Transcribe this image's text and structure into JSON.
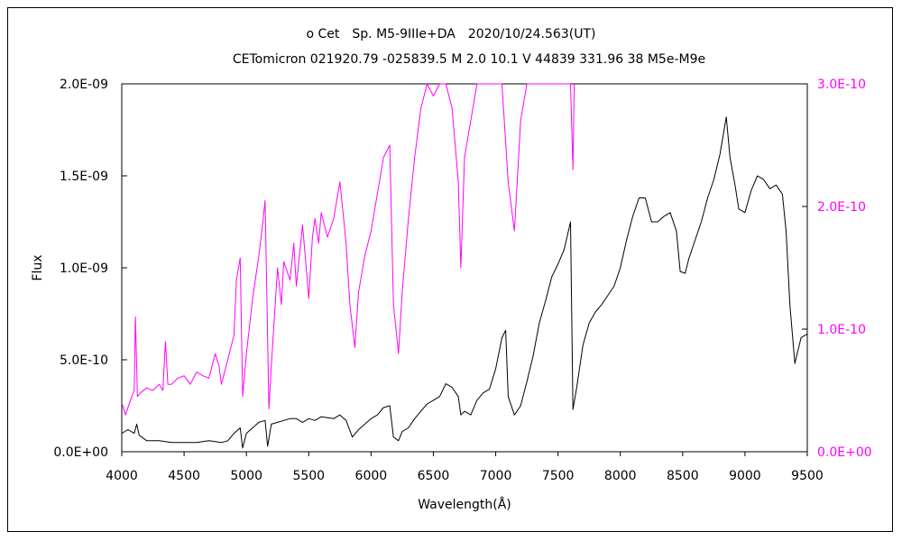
{
  "chart_data": {
    "type": "line",
    "title": "ο Cet　Sp. M5-9IIIe+DA　2020/10/24.563(UT)",
    "subtitle": "CETomicron 021920.79 -025839.5 M 2.0 10.1 V 44839 331.96 38 M5e-M9e",
    "xlabel": "Wavelength(Å)",
    "ylabel": "Flux",
    "xlim": [
      4000,
      9500
    ],
    "ylim": [
      0,
      2e-09
    ],
    "y2lim": [
      0,
      3e-10
    ],
    "grid": false,
    "x_ticks": [
      "4000",
      "4500",
      "5000",
      "5500",
      "6000",
      "6500",
      "7000",
      "7500",
      "8000",
      "8500",
      "9000",
      "9500"
    ],
    "y_ticks": [
      "0.0E+00",
      "5.0E-10",
      "1.0E-09",
      "1.5E-09",
      "2.0E-09"
    ],
    "y2_ticks": [
      "0.0E+00",
      "1.0E-10",
      "2.0E-10",
      "3.0E-10"
    ],
    "colors": {
      "primary": "#000000",
      "secondary": "#ff00ff"
    },
    "series": [
      {
        "axis": "left",
        "color": "#000000",
        "points": [
          [
            4000,
            1e-10
          ],
          [
            4050,
            1.2e-10
          ],
          [
            4100,
            1e-10
          ],
          [
            4120,
            1.5e-10
          ],
          [
            4140,
            9e-11
          ],
          [
            4200,
            6e-11
          ],
          [
            4300,
            6e-11
          ],
          [
            4400,
            5e-11
          ],
          [
            4500,
            5e-11
          ],
          [
            4600,
            5e-11
          ],
          [
            4700,
            6e-11
          ],
          [
            4800,
            5e-11
          ],
          [
            4850,
            6e-11
          ],
          [
            4900,
            1e-10
          ],
          [
            4950,
            1.3e-10
          ],
          [
            4970,
            2e-11
          ],
          [
            5000,
            1e-10
          ],
          [
            5050,
            1.3e-10
          ],
          [
            5100,
            1.6e-10
          ],
          [
            5150,
            1.7e-10
          ],
          [
            5170,
            3e-11
          ],
          [
            5200,
            1.5e-10
          ],
          [
            5250,
            1.6e-10
          ],
          [
            5300,
            1.7e-10
          ],
          [
            5350,
            1.8e-10
          ],
          [
            5400,
            1.8e-10
          ],
          [
            5450,
            1.6e-10
          ],
          [
            5500,
            1.8e-10
          ],
          [
            5550,
            1.7e-10
          ],
          [
            5600,
            1.9e-10
          ],
          [
            5700,
            1.8e-10
          ],
          [
            5750,
            2e-10
          ],
          [
            5800,
            1.7e-10
          ],
          [
            5850,
            8e-11
          ],
          [
            5900,
            1.2e-10
          ],
          [
            5950,
            1.5e-10
          ],
          [
            6000,
            1.8e-10
          ],
          [
            6050,
            2e-10
          ],
          [
            6100,
            2.4e-10
          ],
          [
            6150,
            2.5e-10
          ],
          [
            6180,
            8e-11
          ],
          [
            6220,
            6e-11
          ],
          [
            6250,
            1.1e-10
          ],
          [
            6300,
            1.3e-10
          ],
          [
            6350,
            1.8e-10
          ],
          [
            6400,
            2.2e-10
          ],
          [
            6450,
            2.6e-10
          ],
          [
            6500,
            2.8e-10
          ],
          [
            6550,
            3e-10
          ],
          [
            6600,
            3.7e-10
          ],
          [
            6650,
            3.5e-10
          ],
          [
            6700,
            3e-10
          ],
          [
            6720,
            2e-10
          ],
          [
            6750,
            2.2e-10
          ],
          [
            6800,
            2e-10
          ],
          [
            6850,
            2.8e-10
          ],
          [
            6900,
            3.2e-10
          ],
          [
            6950,
            3.4e-10
          ],
          [
            7000,
            4.5e-10
          ],
          [
            7050,
            6.2e-10
          ],
          [
            7080,
            6.6e-10
          ],
          [
            7100,
            3e-10
          ],
          [
            7150,
            2e-10
          ],
          [
            7200,
            2.5e-10
          ],
          [
            7250,
            3.8e-10
          ],
          [
            7300,
            5.2e-10
          ],
          [
            7350,
            7e-10
          ],
          [
            7400,
            8.2e-10
          ],
          [
            7450,
            9.5e-10
          ],
          [
            7500,
            1.02e-09
          ],
          [
            7550,
            1.1e-09
          ],
          [
            7600,
            1.25e-09
          ],
          [
            7620,
            2.3e-10
          ],
          [
            7650,
            3.5e-10
          ],
          [
            7700,
            5.8e-10
          ],
          [
            7750,
            7e-10
          ],
          [
            7800,
            7.6e-10
          ],
          [
            7850,
            8e-10
          ],
          [
            7900,
            8.5e-10
          ],
          [
            7950,
            9e-10
          ],
          [
            8000,
            1e-09
          ],
          [
            8050,
            1.15e-09
          ],
          [
            8100,
            1.28e-09
          ],
          [
            8150,
            1.38e-09
          ],
          [
            8200,
            1.38e-09
          ],
          [
            8250,
            1.25e-09
          ],
          [
            8300,
            1.25e-09
          ],
          [
            8350,
            1.28e-09
          ],
          [
            8400,
            1.3e-09
          ],
          [
            8450,
            1.2e-09
          ],
          [
            8480,
            9.8e-10
          ],
          [
            8520,
            9.7e-10
          ],
          [
            8550,
            1.05e-09
          ],
          [
            8600,
            1.15e-09
          ],
          [
            8650,
            1.25e-09
          ],
          [
            8700,
            1.38e-09
          ],
          [
            8750,
            1.48e-09
          ],
          [
            8800,
            1.62e-09
          ],
          [
            8850,
            1.82e-09
          ],
          [
            8880,
            1.6e-09
          ],
          [
            8920,
            1.45e-09
          ],
          [
            8950,
            1.32e-09
          ],
          [
            9000,
            1.3e-09
          ],
          [
            9050,
            1.42e-09
          ],
          [
            9100,
            1.5e-09
          ],
          [
            9150,
            1.48e-09
          ],
          [
            9200,
            1.43e-09
          ],
          [
            9250,
            1.45e-09
          ],
          [
            9300,
            1.4e-09
          ],
          [
            9330,
            1.2e-09
          ],
          [
            9360,
            8e-10
          ],
          [
            9400,
            4.8e-10
          ],
          [
            9450,
            6.2e-10
          ],
          [
            9500,
            6.4e-10
          ]
        ]
      },
      {
        "axis": "right",
        "color": "#ff00ff",
        "points": [
          [
            4000,
            4e-11
          ],
          [
            4030,
            3e-11
          ],
          [
            4080,
            4.5e-11
          ],
          [
            4100,
            5e-11
          ],
          [
            4110,
            1.1e-10
          ],
          [
            4125,
            4.5e-11
          ],
          [
            4150,
            4.8e-11
          ],
          [
            4200,
            5.2e-11
          ],
          [
            4250,
            5e-11
          ],
          [
            4300,
            5.5e-11
          ],
          [
            4330,
            5e-11
          ],
          [
            4350,
            9e-11
          ],
          [
            4370,
            5.5e-11
          ],
          [
            4400,
            5.5e-11
          ],
          [
            4450,
            6e-11
          ],
          [
            4500,
            6.2e-11
          ],
          [
            4550,
            5.5e-11
          ],
          [
            4600,
            6.5e-11
          ],
          [
            4650,
            6.2e-11
          ],
          [
            4700,
            6e-11
          ],
          [
            4750,
            8e-11
          ],
          [
            4780,
            7e-11
          ],
          [
            4800,
            5.5e-11
          ],
          [
            4850,
            7.5e-11
          ],
          [
            4900,
            9.5e-11
          ],
          [
            4920,
            1.4e-10
          ],
          [
            4950,
            1.58e-10
          ],
          [
            4970,
            4.5e-11
          ],
          [
            5000,
            8e-11
          ],
          [
            5050,
            1.25e-10
          ],
          [
            5100,
            1.6e-10
          ],
          [
            5130,
            1.85e-10
          ],
          [
            5150,
            2.05e-10
          ],
          [
            5180,
            3.5e-11
          ],
          [
            5200,
            7e-11
          ],
          [
            5250,
            1.5e-10
          ],
          [
            5280,
            1.2e-10
          ],
          [
            5300,
            1.55e-10
          ],
          [
            5350,
            1.4e-10
          ],
          [
            5380,
            1.7e-10
          ],
          [
            5400,
            1.35e-10
          ],
          [
            5450,
            1.85e-10
          ],
          [
            5480,
            1.5e-10
          ],
          [
            5500,
            1.25e-10
          ],
          [
            5530,
            1.75e-10
          ],
          [
            5550,
            1.9e-10
          ],
          [
            5580,
            1.7e-10
          ],
          [
            5600,
            1.95e-10
          ],
          [
            5650,
            1.75e-10
          ],
          [
            5700,
            1.9e-10
          ],
          [
            5750,
            2.2e-10
          ],
          [
            5780,
            1.9e-10
          ],
          [
            5800,
            1.7e-10
          ],
          [
            5830,
            1.2e-10
          ],
          [
            5870,
            8.5e-11
          ],
          [
            5900,
            1.3e-10
          ],
          [
            5950,
            1.6e-10
          ],
          [
            6000,
            1.8e-10
          ],
          [
            6050,
            2.1e-10
          ],
          [
            6100,
            2.4e-10
          ],
          [
            6150,
            2.5e-10
          ],
          [
            6180,
            1.2e-10
          ],
          [
            6220,
            8e-11
          ],
          [
            6250,
            1.3e-10
          ],
          [
            6300,
            1.9e-10
          ],
          [
            6350,
            2.4e-10
          ],
          [
            6400,
            2.8e-10
          ],
          [
            6450,
            3e-10
          ],
          [
            6500,
            2.9e-10
          ],
          [
            6550,
            3e-10
          ],
          [
            6600,
            3e-10
          ],
          [
            6650,
            2.8e-10
          ],
          [
            6700,
            2.2e-10
          ],
          [
            6720,
            1.5e-10
          ],
          [
            6750,
            2.4e-10
          ],
          [
            6800,
            2.7e-10
          ],
          [
            6850,
            3e-10
          ],
          [
            6900,
            3e-10
          ],
          [
            6950,
            3e-10
          ],
          [
            7000,
            3e-10
          ],
          [
            7050,
            3e-10
          ],
          [
            7100,
            2.2e-10
          ],
          [
            7150,
            1.8e-10
          ],
          [
            7200,
            2.7e-10
          ],
          [
            7250,
            3e-10
          ],
          [
            7600,
            3e-10
          ],
          [
            7620,
            2.3e-10
          ],
          [
            7630,
            3e-10
          ]
        ]
      }
    ]
  }
}
